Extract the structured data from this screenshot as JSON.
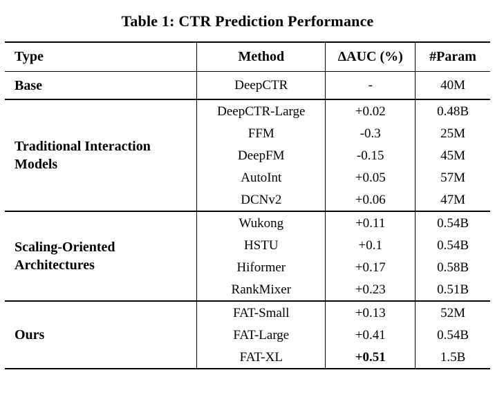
{
  "title": "Table 1: CTR Prediction Performance",
  "table": {
    "columns": [
      "Type",
      "Method",
      "ΔAUC (%)",
      "#Param"
    ],
    "groups": [
      {
        "type": "Base",
        "rows": [
          {
            "method": "DeepCTR",
            "dauc": "-",
            "param": "40M"
          }
        ]
      },
      {
        "type": "Traditional Interaction Models",
        "rows": [
          {
            "method": "DeepCTR-Large",
            "dauc": "+0.02",
            "param": "0.48B"
          },
          {
            "method": "FFM",
            "dauc": "-0.3",
            "param": "25M"
          },
          {
            "method": "DeepFM",
            "dauc": "-0.15",
            "param": "45M"
          },
          {
            "method": "AutoInt",
            "dauc": "+0.05",
            "param": "57M"
          },
          {
            "method": "DCNv2",
            "dauc": "+0.06",
            "param": "47M"
          }
        ]
      },
      {
        "type": "Scaling-Oriented Architectures",
        "rows": [
          {
            "method": "Wukong",
            "dauc": "+0.11",
            "param": "0.54B"
          },
          {
            "method": "HSTU",
            "dauc": "+0.1",
            "param": "0.54B"
          },
          {
            "method": "Hiformer",
            "dauc": "+0.17",
            "param": "0.58B"
          },
          {
            "method": "RankMixer",
            "dauc": "+0.23",
            "param": "0.51B"
          }
        ]
      },
      {
        "type": "Ours",
        "rows": [
          {
            "method": "FAT-Small",
            "dauc": "+0.13",
            "param": "52M"
          },
          {
            "method": "FAT-Large",
            "dauc": "+0.41",
            "param": "0.54B"
          },
          {
            "method": "FAT-XL",
            "dauc": "+0.51",
            "param": "1.5B"
          }
        ]
      }
    ]
  }
}
